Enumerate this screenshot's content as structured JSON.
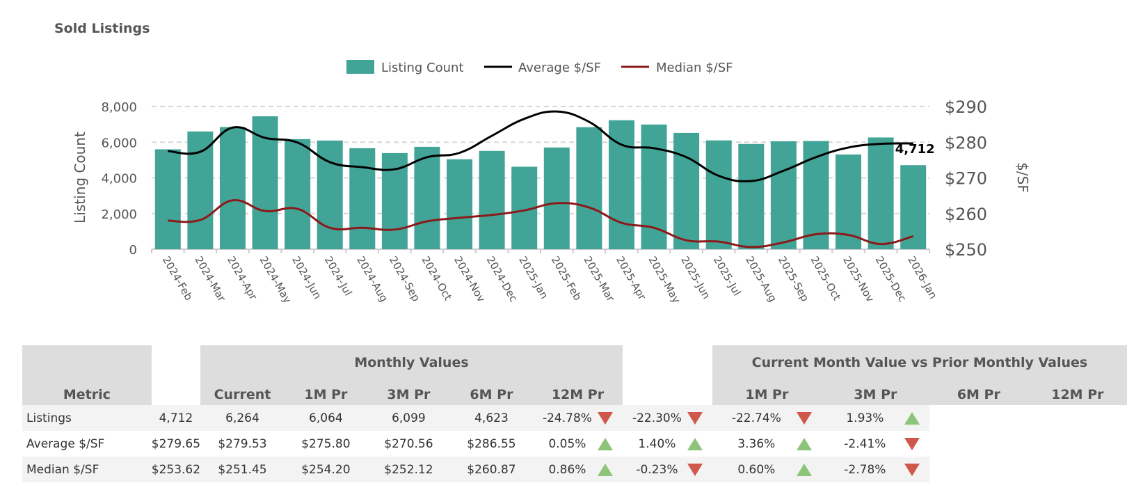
{
  "title": "Sold Listings",
  "colors": {
    "bar": "#41A497",
    "average": "#000000",
    "median": "#8B1A1A",
    "up": "#8CC47A",
    "down": "#D0574B"
  },
  "chart_data": {
    "type": "bar+line",
    "categories": [
      "2024-Feb",
      "2024-Mar",
      "2024-Apr",
      "2024-May",
      "2024-Jun",
      "2024-Jul",
      "2024-Aug",
      "2024-Sep",
      "2024-Oct",
      "2024-Nov",
      "2024-Dec",
      "2025-Jan",
      "2025-Feb",
      "2025-Mar",
      "2025-Apr",
      "2025-May",
      "2025-Jun",
      "2025-Jul",
      "2025-Aug",
      "2025-Sep",
      "2025-Oct",
      "2025-Nov",
      "2025-Dec",
      "2026-Jan"
    ],
    "series": [
      {
        "name": "Listing Count",
        "type": "bar",
        "axis": "left",
        "values": [
          5600,
          6600,
          6850,
          7450,
          6170,
          6090,
          5660,
          5390,
          5740,
          5040,
          5510,
          4623,
          5700,
          6840,
          7230,
          6990,
          6520,
          6099,
          5900,
          6050,
          6064,
          5310,
          6264,
          4712
        ]
      },
      {
        "name": "Average $/SF",
        "type": "line",
        "axis": "right",
        "values": [
          277.5,
          277.3,
          284.1,
          281.2,
          279.9,
          274.4,
          273.0,
          272.4,
          275.8,
          277.0,
          281.8,
          286.55,
          288.6,
          285.7,
          279.3,
          278.3,
          275.8,
          270.56,
          269.1,
          272.0,
          275.8,
          278.5,
          279.53,
          279.65
        ]
      },
      {
        "name": "Median $/SF",
        "type": "line",
        "axis": "right",
        "values": [
          258.0,
          258.2,
          263.7,
          260.7,
          261.3,
          256.0,
          256.0,
          255.5,
          257.8,
          258.8,
          259.6,
          260.87,
          262.9,
          261.7,
          257.4,
          256.0,
          252.5,
          252.12,
          250.6,
          251.9,
          254.2,
          254.0,
          251.45,
          253.62
        ]
      }
    ],
    "ylabel": "Listing Count",
    "y2label": "$/SF",
    "ylim": [
      0,
      8000
    ],
    "y2lim": [
      250,
      290
    ],
    "yticks": [
      "0",
      "2,000",
      "4,000",
      "6,000",
      "8,000"
    ],
    "y2ticks": [
      "$250",
      "$260",
      "$270",
      "$280",
      "$290"
    ],
    "data_label": "4,712",
    "legend": "top-center",
    "grid": true
  },
  "table": {
    "metric_header": "Metric",
    "group1": "Monthly Values",
    "group2": "Current Month Value vs Prior Monthly Values",
    "cols1": [
      "Current",
      "1M Pr",
      "3M Pr",
      "6M Pr",
      "12M Pr"
    ],
    "cols2": [
      "1M Pr",
      "3M Pr",
      "6M Pr",
      "12M Pr"
    ],
    "rows": [
      {
        "metric": "Listings",
        "values": [
          "4,712",
          "6,264",
          "6,064",
          "6,099",
          "4,623"
        ],
        "pct": [
          "-24.78%",
          "-22.30%",
          "-22.74%",
          "1.93%"
        ],
        "dir": [
          "down",
          "down",
          "down",
          "up"
        ]
      },
      {
        "metric": "Average $/SF",
        "values": [
          "$279.65",
          "$279.53",
          "$275.80",
          "$270.56",
          "$286.55"
        ],
        "pct": [
          "0.05%",
          "1.40%",
          "3.36%",
          "-2.41%"
        ],
        "dir": [
          "up",
          "up",
          "up",
          "down"
        ]
      },
      {
        "metric": "Median $/SF",
        "values": [
          "$253.62",
          "$251.45",
          "$254.20",
          "$252.12",
          "$260.87"
        ],
        "pct": [
          "0.86%",
          "-0.23%",
          "0.60%",
          "-2.78%"
        ],
        "dir": [
          "up",
          "down",
          "up",
          "down"
        ]
      }
    ]
  }
}
